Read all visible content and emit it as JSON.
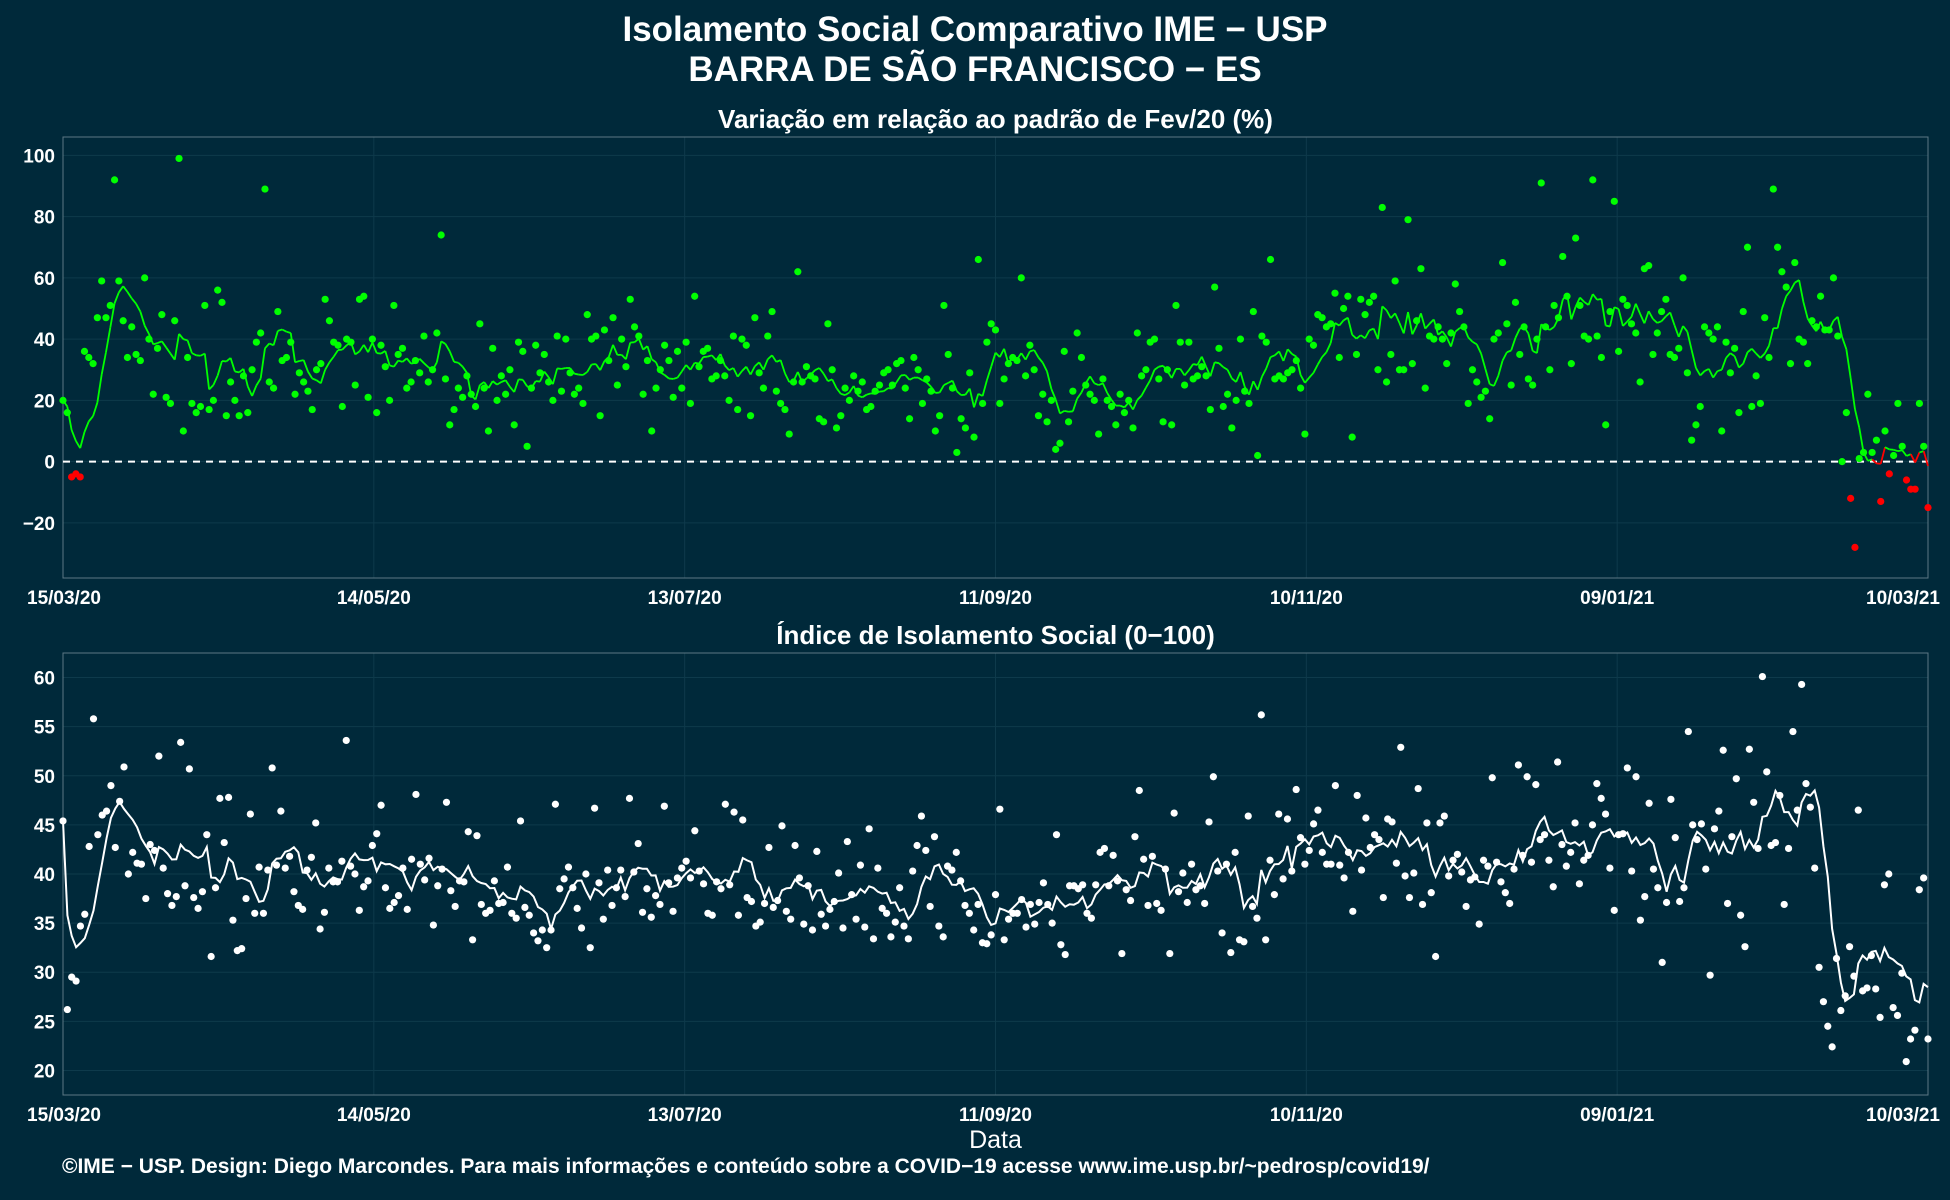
{
  "header": {
    "title": "Isolamento Social Comparativo IME − USP",
    "subtitle": "BARRA DE SÃO FRANCISCO − ES"
  },
  "footer": {
    "credit": "©IME − USP. Design: Diego Marcondes. Para mais informações e conteúdo sobre a COVID−19 acesse www.ime.usp.br/~pedrosp/covid19/"
  },
  "colors": {
    "background": "#00293a",
    "positive": "#00ff00",
    "negative": "#ff0000",
    "index": "#ffffff"
  },
  "chart_data": [
    {
      "type": "scatter",
      "title": "Variação em relação ao padrão de Fev/20 (%)",
      "xlabel": "",
      "ylabel": "",
      "x_ticks": [
        "15/03/20",
        "14/05/20",
        "13/07/20",
        "11/09/20",
        "10/11/20",
        "09/01/21",
        "10/03/21"
      ],
      "y_ticks": [
        -20,
        0,
        20,
        40,
        60,
        80,
        100
      ],
      "ylim": [
        -38,
        106
      ],
      "xlim_days": [
        0,
        365
      ],
      "reference_line": 0,
      "grid": true,
      "series": [
        {
          "values_by_day": [
            20,
            16,
            -5,
            -4,
            -5,
            36,
            34,
            32,
            47,
            59,
            47,
            51,
            92,
            59,
            46,
            34,
            44,
            35,
            33,
            60,
            40,
            22,
            37,
            48,
            21,
            19,
            46,
            99,
            10,
            34,
            19,
            16,
            18,
            51,
            17,
            20,
            56,
            52,
            15,
            26,
            20,
            15,
            28,
            16,
            30,
            39,
            42,
            89,
            26,
            24,
            49,
            33,
            34,
            39,
            22,
            29,
            26,
            23,
            17,
            30,
            32,
            53,
            46,
            39,
            38,
            18,
            40,
            39,
            25,
            53,
            54,
            21,
            40,
            16,
            38,
            31,
            20,
            51,
            35,
            37,
            24,
            26,
            33,
            29,
            41,
            26,
            30,
            42,
            74,
            27,
            12,
            17,
            24,
            21,
            28,
            22,
            18,
            45,
            24,
            10,
            37,
            20,
            28,
            22,
            30,
            12,
            39,
            36,
            5,
            24,
            38,
            29,
            35,
            26,
            20,
            41,
            23,
            40,
            29,
            22,
            24,
            19,
            48,
            40,
            41,
            15,
            43,
            33,
            47,
            25,
            40,
            31,
            53,
            44,
            41,
            22,
            33,
            10,
            24,
            30,
            38,
            33,
            21,
            36,
            24,
            39,
            19,
            54,
            31,
            36,
            37,
            27,
            28,
            33,
            28,
            20,
            41,
            17,
            40,
            38,
            15,
            47,
            29,
            24,
            41,
            49,
            23,
            19,
            17,
            9,
            26,
            62,
            26,
            31,
            28,
            27,
            14,
            13,
            45,
            30,
            11,
            15,
            24,
            20,
            28,
            23,
            26,
            17,
            18,
            23,
            25,
            29,
            30,
            25,
            32,
            33,
            24,
            14,
            34,
            30,
            19,
            27,
            23,
            10,
            15,
            51,
            35,
            24,
            3,
            14,
            11,
            29,
            8,
            66,
            19,
            39,
            45,
            43,
            19,
            27,
            32,
            34,
            33,
            60,
            28,
            38,
            30,
            15,
            22,
            13,
            20,
            4,
            6,
            36,
            13,
            23,
            42,
            34,
            25,
            22,
            20,
            9,
            27,
            20,
            18,
            12,
            22,
            16,
            20,
            11,
            42,
            28,
            30,
            39,
            40,
            27,
            13,
            30,
            12,
            51,
            39,
            25,
            39,
            27,
            28,
            31,
            28,
            17,
            57,
            37,
            18,
            22,
            11,
            20,
            40,
            23,
            19,
            49,
            2,
            41,
            39,
            66,
            27,
            28,
            27,
            29,
            30,
            33,
            24,
            9,
            40,
            38,
            48,
            47,
            44,
            45,
            55,
            34,
            50,
            54,
            8,
            35,
            53,
            48,
            52,
            54,
            30,
            83,
            26,
            35,
            59,
            30,
            30,
            79,
            32,
            46,
            63,
            24,
            41,
            40,
            44,
            40,
            32,
            42,
            58,
            49,
            44,
            19,
            30,
            26,
            21,
            23,
            14,
            40,
            42,
            65,
            45,
            25,
            52,
            35,
            44,
            27,
            25,
            40,
            91,
            44,
            30,
            51,
            47,
            67,
            54,
            32,
            73,
            51,
            41,
            40,
            92,
            41,
            34,
            12,
            49,
            85,
            36,
            53,
            51,
            45,
            42,
            26,
            63,
            64,
            35,
            42,
            49,
            53,
            35,
            34,
            37,
            60,
            29,
            7,
            12,
            18,
            44,
            42,
            40,
            44,
            10,
            39,
            29,
            37,
            16,
            49,
            70,
            18,
            28,
            19,
            47,
            34,
            89,
            70,
            62,
            57,
            32,
            65,
            40,
            39,
            32,
            46,
            44,
            54,
            43,
            43,
            60,
            41,
            0,
            16,
            -12,
            -28,
            1,
            3,
            22,
            3,
            7,
            -13,
            10,
            -4,
            2,
            19,
            5,
            -6,
            -9,
            -9,
            19,
            5,
            -15
          ]
        }
      ]
    },
    {
      "type": "scatter",
      "title": "Índice de Isolamento Social (0−100)",
      "xlabel": "Data",
      "ylabel": "",
      "x_ticks": [
        "15/03/20",
        "14/05/20",
        "13/07/20",
        "11/09/20",
        "10/11/20",
        "09/01/21",
        "10/03/21"
      ],
      "y_ticks": [
        20,
        25,
        30,
        35,
        40,
        45,
        50,
        55,
        60
      ],
      "ylim": [
        17.5,
        62.5
      ],
      "xlim_days": [
        0,
        365
      ],
      "grid": true,
      "series": [
        {
          "values_by_day": [
            45.4,
            26.2,
            29.5,
            29.1,
            34.7,
            35.9,
            42.8,
            55.8,
            44.0,
            46.0,
            46.4,
            49.0,
            42.7,
            47.4,
            50.9,
            40.0,
            42.2,
            41.1,
            41.0,
            37.5,
            43.0,
            42.4,
            52.0,
            40.6,
            38.0,
            36.8,
            37.7,
            53.4,
            38.8,
            50.7,
            37.6,
            36.5,
            38.2,
            44.0,
            31.6,
            38.6,
            47.7,
            43.2,
            47.8,
            35.3,
            32.2,
            32.4,
            37.5,
            46.1,
            36.0,
            40.7,
            36.0,
            40.4,
            50.8,
            40.9,
            46.4,
            40.6,
            41.8,
            38.2,
            36.8,
            36.4,
            40.4,
            41.7,
            45.2,
            34.4,
            36.1,
            40.6,
            39.2,
            39.2,
            41.3,
            53.6,
            40.8,
            40.0,
            36.3,
            38.7,
            39.3,
            42.9,
            44.1,
            47.0,
            38.6,
            36.5,
            37.1,
            37.8,
            40.6,
            36.4,
            41.5,
            48.1,
            41.0,
            39.4,
            41.6,
            34.8,
            38.8,
            40.5,
            47.3,
            38.3,
            36.7,
            39.3,
            39.2,
            44.3,
            33.3,
            43.9,
            36.9,
            36.0,
            36.3,
            39.3,
            37.0,
            37.1,
            40.7,
            36.0,
            35.5,
            45.4,
            36.6,
            35.8,
            34.0,
            33.2,
            34.3,
            32.5,
            34.3,
            47.1,
            38.5,
            39.5,
            40.7,
            38.6,
            36.5,
            34.5,
            40.0,
            32.5,
            46.7,
            39.1,
            35.4,
            40.4,
            36.8,
            38.6,
            40.4,
            37.7,
            47.7,
            40.2,
            43.1,
            36.1,
            38.5,
            35.6,
            37.8,
            36.9,
            46.9,
            39.1,
            36.2,
            39.6,
            40.6,
            41.3,
            39.6,
            44.4,
            40.3,
            39.0,
            36.0,
            35.8,
            39.2,
            38.5,
            47.1,
            38.9,
            46.3,
            35.8,
            45.5,
            37.6,
            37.2,
            34.7,
            35.1,
            37.0,
            42.7,
            36.6,
            37.3,
            44.9,
            36.2,
            35.4,
            42.9,
            39.6,
            34.9,
            38.8,
            34.3,
            42.3,
            35.9,
            34.7,
            36.4,
            37.2,
            40.1,
            34.5,
            43.3,
            37.9,
            35.4,
            40.9,
            34.6,
            44.6,
            33.4,
            40.6,
            36.5,
            36.0,
            33.6,
            35.1,
            38.6,
            34.7,
            33.4,
            40.3,
            42.9,
            45.9,
            42.4,
            36.7,
            43.8,
            34.7,
            33.6,
            40.8,
            40.4,
            42.2,
            39.3,
            36.8,
            36.0,
            34.3,
            36.9,
            33.0,
            32.9,
            33.8,
            37.9,
            46.6,
            33.3,
            35.4,
            36.0,
            36.0,
            37.4,
            34.6,
            36.9,
            34.9,
            37.1,
            39.1,
            36.9,
            35.0,
            44.0,
            32.8,
            31.8,
            38.8,
            38.8,
            38.5,
            38.9,
            36.0,
            35.5,
            38.9,
            42.2,
            42.6,
            38.8,
            41.9,
            39.3,
            31.9,
            38.4,
            37.3,
            43.8,
            48.5,
            41.5,
            36.8,
            41.8,
            37.0,
            36.3,
            40.5,
            31.9,
            46.2,
            38.2,
            40.1,
            37.1,
            41.0,
            38.4,
            38.8,
            37.0,
            45.3,
            49.9,
            40.3,
            34.0,
            41.0,
            32.0,
            42.2,
            33.3,
            33.1,
            45.9,
            36.7,
            35.5,
            56.2,
            33.3,
            41.4,
            37.9,
            46.1,
            39.5,
            45.6,
            40.3,
            48.6,
            43.7,
            41.0,
            42.4,
            45.1,
            46.5,
            42.2,
            41.0,
            41.0,
            49.0,
            40.9,
            39.6,
            42.2,
            36.2,
            48.0,
            40.4,
            45.7,
            42.7,
            44.0,
            43.5,
            37.6,
            45.6,
            45.3,
            41.1,
            52.9,
            39.8,
            37.6,
            40.1,
            48.7,
            36.9,
            45.2,
            38.1,
            31.6,
            45.2,
            45.9,
            39.8,
            41.4,
            42.0,
            40.2,
            36.7,
            39.4,
            39.7,
            34.9,
            41.4,
            40.8,
            49.8,
            41.2,
            39.2,
            38.1,
            37.0,
            40.5,
            51.1,
            41.9,
            49.9,
            41.2,
            49.1,
            43.5,
            44.0,
            41.4,
            38.7,
            51.4,
            43.0,
            40.8,
            42.2,
            45.2,
            39.0,
            41.4,
            41.9,
            45.0,
            49.2,
            47.7,
            46.1,
            40.6,
            36.3,
            44.0,
            44.1,
            50.8,
            40.3,
            49.9,
            35.3,
            37.7,
            47.2,
            40.5,
            38.6,
            31.0,
            37.1,
            47.6,
            43.7,
            37.2,
            38.6,
            54.5,
            45.0,
            43.5,
            45.1,
            40.5,
            29.7,
            44.6,
            46.4,
            52.6,
            37.0,
            43.8,
            49.7,
            35.8,
            32.6,
            52.7,
            47.3,
            42.6,
            60.1,
            50.4,
            42.9,
            43.2,
            48.0,
            36.9,
            42.6,
            54.5,
            46.5,
            59.3,
            49.2,
            46.8,
            40.6,
            30.5,
            27.0,
            24.5,
            22.4,
            31.4,
            26.1,
            27.6,
            32.6,
            29.6,
            46.5,
            28.1,
            28.4,
            31.7,
            28.3,
            25.4,
            38.9,
            40.0,
            26.4,
            25.6,
            29.9,
            20.9,
            23.2,
            24.1,
            38.4,
            39.6,
            23.2
          ]
        }
      ]
    }
  ]
}
